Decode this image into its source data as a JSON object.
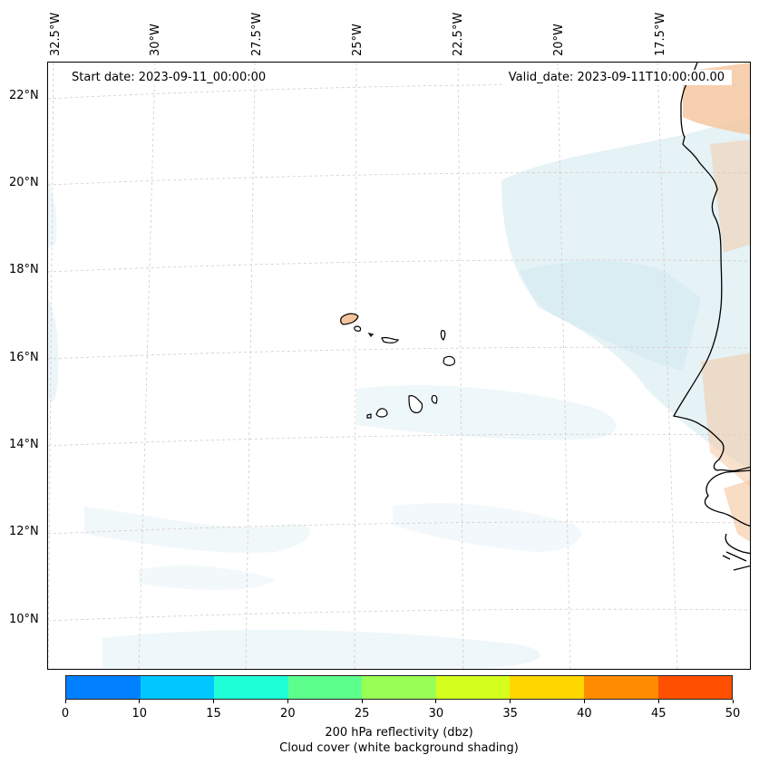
{
  "map": {
    "start_date": "Start date: 2023-09-11_00:00:00",
    "valid_date": "Valid_date: 2023-09-11T10:00:00.00",
    "longitude_labels": [
      "32.5°W",
      "30°W",
      "27.5°W",
      "25°W",
      "22.5°W",
      "20°W",
      "17.5°W"
    ],
    "latitude_labels": [
      "22°N",
      "20°N",
      "18°N",
      "16°N",
      "14°N",
      "12°N",
      "10°N"
    ],
    "gridlines": "dashed",
    "features": [
      "coastline-west-africa",
      "cabo-verde-islands",
      "cloud-cover-shading",
      "reflectivity-shading"
    ]
  },
  "colorbar": {
    "ticks": [
      "0",
      "10",
      "15",
      "20",
      "25",
      "30",
      "35",
      "40",
      "45",
      "50"
    ],
    "colors": [
      "#0080ff",
      "#00c8ff",
      "#1effd8",
      "#5cff8c",
      "#98ff56",
      "#d4ff1e",
      "#ffd700",
      "#ff8c00",
      "#ff4f00"
    ],
    "label_line1": "200 hPa reflectivity (dbz)",
    "label_line2": "Cloud cover (white background shading)"
  },
  "colors": {
    "cloud_shade": "#cfe7ef",
    "land_shade": "#f5c49c",
    "grid": "#d8c8c8"
  }
}
